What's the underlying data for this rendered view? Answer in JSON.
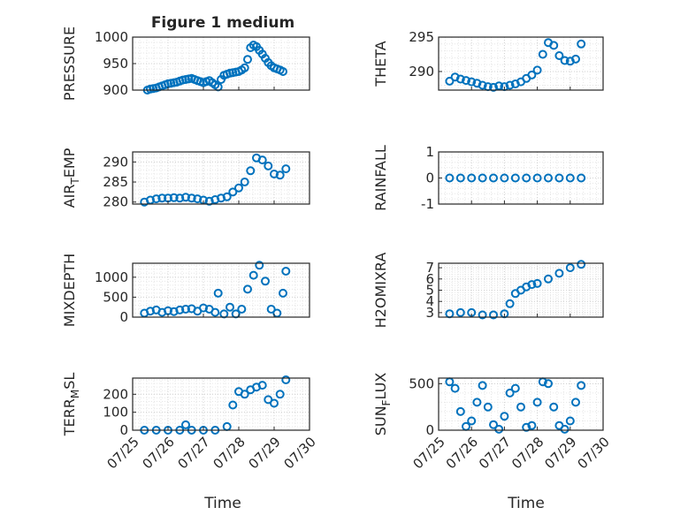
{
  "figure": {
    "title": "Figure 1 medium",
    "marker_color": "#0072BD"
  },
  "chart_data": [
    {
      "type": "scatter",
      "ylabel": "PRESSURE",
      "xlim": [
        "07/25",
        "07/30"
      ],
      "ylim": [
        900,
        1000
      ],
      "yticks": [
        900,
        950,
        1000
      ],
      "xticks": [
        "07/25",
        "07/26",
        "07/27",
        "07/28",
        "07/29",
        "07/30"
      ],
      "grid": true,
      "x": [
        "07/25 10:00",
        "07/25 12:00",
        "07/25 14:00",
        "07/25 16:00",
        "07/25 18:00",
        "07/25 20:00",
        "07/25 22:00",
        "07/26 00:00",
        "07/26 02:00",
        "07/26 04:00",
        "07/26 06:00",
        "07/26 08:00",
        "07/26 10:00",
        "07/26 12:00",
        "07/26 14:00",
        "07/26 16:00",
        "07/26 18:00",
        "07/26 20:00",
        "07/26 22:00",
        "07/27 00:00",
        "07/27 02:00",
        "07/27 04:00",
        "07/27 06:00",
        "07/27 08:00",
        "07/27 10:00",
        "07/27 12:00",
        "07/27 14:00",
        "07/27 16:00",
        "07/27 18:00",
        "07/27 20:00",
        "07/27 22:00",
        "07/28 00:00",
        "07/28 02:00",
        "07/28 04:00",
        "07/28 06:00",
        "07/28 08:00",
        "07/28 10:00",
        "07/28 12:00",
        "07/28 14:00",
        "07/28 16:00",
        "07/28 18:00",
        "07/28 20:00",
        "07/28 22:00",
        "07/29 00:00",
        "07/29 02:00",
        "07/29 04:00",
        "07/29 06:00"
      ],
      "y": [
        900,
        902,
        903,
        904,
        906,
        908,
        910,
        912,
        913,
        914,
        915,
        917,
        919,
        920,
        921,
        922,
        920,
        918,
        916,
        914,
        916,
        918,
        914,
        910,
        906,
        920,
        928,
        930,
        932,
        933,
        934,
        935,
        938,
        942,
        958,
        980,
        985,
        982,
        975,
        968,
        960,
        952,
        946,
        942,
        940,
        938,
        935
      ]
    },
    {
      "type": "scatter",
      "ylabel": "THETA",
      "xlim": [
        "07/25",
        "07/30"
      ],
      "ylim": [
        287.3,
        295
      ],
      "yticks": [
        290,
        295
      ],
      "xticks": [
        "07/25",
        "07/26",
        "07/27",
        "07/28",
        "07/29",
        "07/30"
      ],
      "grid": true,
      "x": [
        "07/25 08:00",
        "07/25 12:00",
        "07/25 16:00",
        "07/25 20:00",
        "07/26 00:00",
        "07/26 04:00",
        "07/26 08:00",
        "07/26 12:00",
        "07/26 16:00",
        "07/26 20:00",
        "07/27 00:00",
        "07/27 04:00",
        "07/27 08:00",
        "07/27 12:00",
        "07/27 16:00",
        "07/27 20:00",
        "07/28 00:00",
        "07/28 04:00",
        "07/28 08:00",
        "07/28 12:00",
        "07/28 16:00",
        "07/28 20:00",
        "07/29 00:00",
        "07/29 04:00",
        "07/29 08:00"
      ],
      "y": [
        288.6,
        289.2,
        288.9,
        288.7,
        288.5,
        288.3,
        288.0,
        287.8,
        287.7,
        287.9,
        287.8,
        288.0,
        288.2,
        288.5,
        289.0,
        289.5,
        290.2,
        292.5,
        294.2,
        293.8,
        292.3,
        291.6,
        291.5,
        291.8,
        294.0
      ]
    },
    {
      "type": "scatter",
      "ylabel": "AIR_TEMP",
      "xlim": [
        "07/25",
        "07/30"
      ],
      "ylim": [
        279.5,
        292.5
      ],
      "yticks": [
        280,
        285,
        290
      ],
      "xticks": [
        "07/25",
        "07/26",
        "07/27",
        "07/28",
        "07/29",
        "07/30"
      ],
      "grid": true,
      "x": [
        "07/25 08:00",
        "07/25 12:00",
        "07/25 16:00",
        "07/25 20:00",
        "07/26 00:00",
        "07/26 04:00",
        "07/26 08:00",
        "07/26 12:00",
        "07/26 16:00",
        "07/26 20:00",
        "07/27 00:00",
        "07/27 04:00",
        "07/27 08:00",
        "07/27 12:00",
        "07/27 16:00",
        "07/27 20:00",
        "07/28 00:00",
        "07/28 04:00",
        "07/28 08:00",
        "07/28 12:00",
        "07/28 16:00",
        "07/28 20:00",
        "07/29 00:00",
        "07/29 04:00",
        "07/29 08:00"
      ],
      "y": [
        280.0,
        280.5,
        280.8,
        281.0,
        281.0,
        281.1,
        281.0,
        281.2,
        281.0,
        280.8,
        280.5,
        280.2,
        280.6,
        281.0,
        281.3,
        282.5,
        283.5,
        285.0,
        287.8,
        291.0,
        290.5,
        289.0,
        287.0,
        286.7,
        288.3
      ]
    },
    {
      "type": "scatter",
      "ylabel": "RAINFALL",
      "xlim": [
        "07/25",
        "07/30"
      ],
      "ylim": [
        -1,
        1
      ],
      "yticks": [
        -1,
        0,
        1
      ],
      "xticks": [
        "07/25",
        "07/26",
        "07/27",
        "07/28",
        "07/29",
        "07/30"
      ],
      "grid": true,
      "x": [
        "07/25 08:00",
        "07/25 16:00",
        "07/26 00:00",
        "07/26 08:00",
        "07/26 16:00",
        "07/27 00:00",
        "07/27 08:00",
        "07/27 16:00",
        "07/28 00:00",
        "07/28 08:00",
        "07/28 16:00",
        "07/29 00:00",
        "07/29 08:00"
      ],
      "y": [
        0,
        0,
        0,
        0,
        0,
        0,
        0,
        0,
        0,
        0,
        0,
        0,
        0
      ]
    },
    {
      "type": "scatter",
      "ylabel": "MIXDEPTH",
      "xlim": [
        "07/25",
        "07/30"
      ],
      "ylim": [
        0,
        1350
      ],
      "yticks": [
        0,
        500,
        1000
      ],
      "xticks": [
        "07/25",
        "07/26",
        "07/27",
        "07/28",
        "07/29",
        "07/30"
      ],
      "grid": true,
      "x": [
        "07/25 08:00",
        "07/25 12:00",
        "07/25 16:00",
        "07/25 20:00",
        "07/26 00:00",
        "07/26 04:00",
        "07/26 08:00",
        "07/26 12:00",
        "07/26 16:00",
        "07/26 20:00",
        "07/27 00:00",
        "07/27 04:00",
        "07/27 08:00",
        "07/27 10:00",
        "07/27 14:00",
        "07/27 18:00",
        "07/27 22:00",
        "07/28 02:00",
        "07/28 06:00",
        "07/28 10:00",
        "07/28 14:00",
        "07/28 18:00",
        "07/28 22:00",
        "07/29 02:00",
        "07/29 06:00",
        "07/29 08:00"
      ],
      "y": [
        100,
        150,
        180,
        120,
        160,
        140,
        180,
        200,
        210,
        150,
        230,
        200,
        120,
        600,
        80,
        250,
        80,
        200,
        700,
        1050,
        1300,
        900,
        200,
        100,
        600,
        1150
      ]
    },
    {
      "type": "scatter",
      "ylabel": "H2OMIXRA",
      "xlim": [
        "07/25",
        "07/30"
      ],
      "ylim": [
        2.6,
        7.4
      ],
      "yticks": [
        3,
        4,
        5,
        6,
        7
      ],
      "xticks": [
        "07/25",
        "07/26",
        "07/27",
        "07/28",
        "07/29",
        "07/30"
      ],
      "grid": true,
      "x": [
        "07/25 08:00",
        "07/25 16:00",
        "07/26 00:00",
        "07/26 08:00",
        "07/26 16:00",
        "07/27 00:00",
        "07/27 04:00",
        "07/27 08:00",
        "07/27 12:00",
        "07/27 16:00",
        "07/27 20:00",
        "07/28 00:00",
        "07/28 08:00",
        "07/28 16:00",
        "07/29 00:00",
        "07/29 08:00"
      ],
      "y": [
        2.9,
        3.0,
        3.0,
        2.8,
        2.8,
        2.9,
        3.8,
        4.7,
        5.0,
        5.3,
        5.5,
        5.6,
        6.0,
        6.5,
        7.0,
        7.3
      ]
    },
    {
      "type": "scatter",
      "ylabel": "TERR_MSL",
      "xlim": [
        "07/25",
        "07/30"
      ],
      "ylim": [
        0,
        290
      ],
      "yticks": [
        0,
        100,
        200
      ],
      "xticks": [
        "07/25",
        "07/26",
        "07/27",
        "07/28",
        "07/29",
        "07/30"
      ],
      "grid": true,
      "x": [
        "07/25 08:00",
        "07/25 16:00",
        "07/26 00:00",
        "07/26 08:00",
        "07/26 12:00",
        "07/26 16:00",
        "07/27 00:00",
        "07/27 08:00",
        "07/27 16:00",
        "07/27 20:00",
        "07/28 00:00",
        "07/28 04:00",
        "07/28 08:00",
        "07/28 12:00",
        "07/28 16:00",
        "07/28 20:00",
        "07/29 00:00",
        "07/29 04:00",
        "07/29 08:00"
      ],
      "y": [
        0,
        0,
        0,
        0,
        30,
        0,
        0,
        0,
        20,
        140,
        215,
        200,
        225,
        240,
        250,
        170,
        150,
        200,
        280
      ]
    },
    {
      "type": "scatter",
      "ylabel": "SUN_FLUX",
      "xlim": [
        "07/25",
        "07/30"
      ],
      "ylim": [
        0,
        560
      ],
      "yticks": [
        0,
        500
      ],
      "xticks": [
        "07/25",
        "07/26",
        "07/27",
        "07/28",
        "07/29",
        "07/30"
      ],
      "grid": true,
      "x": [
        "07/25 08:00",
        "07/25 12:00",
        "07/25 16:00",
        "07/25 20:00",
        "07/26 00:00",
        "07/26 04:00",
        "07/26 08:00",
        "07/26 12:00",
        "07/26 16:00",
        "07/26 20:00",
        "07/27 00:00",
        "07/27 04:00",
        "07/27 08:00",
        "07/27 12:00",
        "07/27 16:00",
        "07/27 20:00",
        "07/28 00:00",
        "07/28 04:00",
        "07/28 08:00",
        "07/28 12:00",
        "07/28 16:00",
        "07/28 20:00",
        "07/29 00:00",
        "07/29 04:00",
        "07/29 08:00"
      ],
      "y": [
        520,
        450,
        200,
        40,
        100,
        300,
        480,
        250,
        60,
        10,
        150,
        400,
        450,
        250,
        30,
        50,
        300,
        520,
        500,
        250,
        50,
        10,
        100,
        300,
        480
      ]
    }
  ],
  "xlabel_bottom": "Time"
}
